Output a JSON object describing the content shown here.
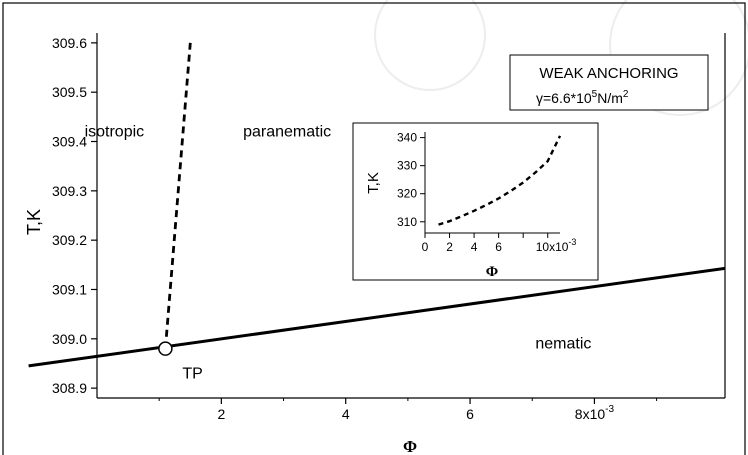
{
  "chart_data": [
    {
      "type": "line",
      "xlabel": "Φ",
      "ylabel": "T,K",
      "xlim": [
        0,
        10.1
      ],
      "ylim": [
        308.88,
        309.62
      ],
      "x_ticks": [
        {
          "value": 2,
          "label": "2"
        },
        {
          "value": 4,
          "label": "4"
        },
        {
          "value": 6,
          "label": "6"
        },
        {
          "value": 8,
          "label": "8x10"
        }
      ],
      "x_tick_exponent": "-3",
      "y_ticks": [
        {
          "value": 308.9,
          "label": "308.9"
        },
        {
          "value": 309.0,
          "label": "309.0"
        },
        {
          "value": 309.1,
          "label": "309.1"
        },
        {
          "value": 309.2,
          "label": "309.2"
        },
        {
          "value": 309.3,
          "label": "309.3"
        },
        {
          "value": 309.4,
          "label": "309.4"
        },
        {
          "value": 309.5,
          "label": "309.5"
        },
        {
          "value": 309.6,
          "label": "309.6"
        }
      ],
      "series": [
        {
          "style": "solid",
          "x": [
            -1.1,
            10.1
          ],
          "y": [
            308.945,
            309.143
          ]
        },
        {
          "style": "dashed",
          "x": [
            1.1,
            1.5
          ],
          "y": [
            308.98,
            309.6
          ]
        }
      ],
      "triple_point": {
        "x": 1.1,
        "y": 308.98,
        "label": "TP"
      },
      "region_labels": [
        {
          "text": "isotropic",
          "x": -0.2,
          "y": 309.42
        },
        {
          "text": "paranematic",
          "x": 2.35,
          "y": 309.42
        },
        {
          "text": "nematic",
          "x": 7.05,
          "y": 308.99
        }
      ],
      "legend_box": {
        "title": "WEAK ANCHORING",
        "gamma_prefix": "γ=6.6*10",
        "gamma_exp": "5",
        "gamma_unit": "N/m",
        "gamma_unit_exp": "2"
      }
    },
    {
      "type": "line",
      "xlabel": "Φ",
      "ylabel": "T,K",
      "xlim": [
        0,
        11
      ],
      "ylim": [
        306,
        342
      ],
      "x_ticks": [
        {
          "value": 0,
          "label": "0"
        },
        {
          "value": 2,
          "label": "2"
        },
        {
          "value": 4,
          "label": "4"
        },
        {
          "value": 6,
          "label": "6"
        },
        {
          "value": 10,
          "label": "10x10"
        }
      ],
      "x_tick_exponent": "-3",
      "y_ticks": [
        {
          "value": 310,
          "label": "310"
        },
        {
          "value": 320,
          "label": "320"
        },
        {
          "value": 330,
          "label": "330"
        },
        {
          "value": 340,
          "label": "340"
        }
      ],
      "series": [
        {
          "style": "dashed",
          "x": [
            1.1,
            2,
            3,
            4,
            5,
            6,
            7,
            8,
            9,
            10,
            11
          ],
          "y": [
            308.98,
            310.2,
            312.0,
            313.9,
            316.0,
            318.3,
            321.0,
            324.0,
            327.6,
            331.6,
            340.6
          ]
        }
      ]
    }
  ]
}
